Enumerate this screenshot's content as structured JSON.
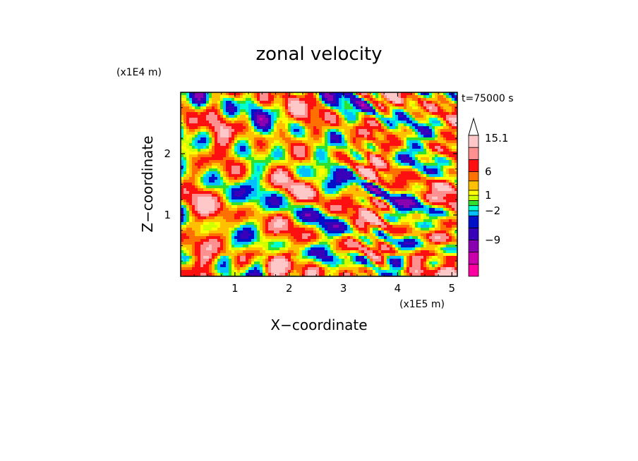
{
  "chart_data": {
    "type": "heatmap",
    "title": "zonal velocity",
    "xlabel": "X−coordinate",
    "ylabel": "Z−coordinate",
    "x_scale_label": "(x1E5 m)",
    "y_scale_label": "(x1E4 m)",
    "time_label": "t=75000 s",
    "x_ticks": [
      "1",
      "2",
      "3",
      "4",
      "5"
    ],
    "x_tick_values": [
      1,
      2,
      3,
      4,
      5
    ],
    "y_ticks": [
      "1",
      "2"
    ],
    "y_tick_values": [
      1,
      2
    ],
    "xlim": [
      0,
      5.1
    ],
    "ylim": [
      0,
      3.0
    ],
    "colorbar": {
      "labels": [
        "15.1",
        "6",
        "1",
        "−2",
        "−9"
      ],
      "label_values": [
        15.1,
        6,
        1,
        -2,
        -9
      ],
      "levels": [
        -15,
        -12,
        -9,
        -6,
        -4,
        -2,
        -1,
        0,
        1,
        2,
        4,
        6,
        9,
        12,
        15.1
      ],
      "colors": [
        "#ff00a0",
        "#cc00aa",
        "#8800b0",
        "#3800b8",
        "#0010c8",
        "#00c0ff",
        "#00ffd0",
        "#30e030",
        "#d0ff00",
        "#ffff00",
        "#ffc000",
        "#ff7000",
        "#ff1010",
        "#ff9090",
        "#ffc8c8"
      ],
      "extend_max": true
    },
    "grid": false,
    "legend": "none"
  }
}
